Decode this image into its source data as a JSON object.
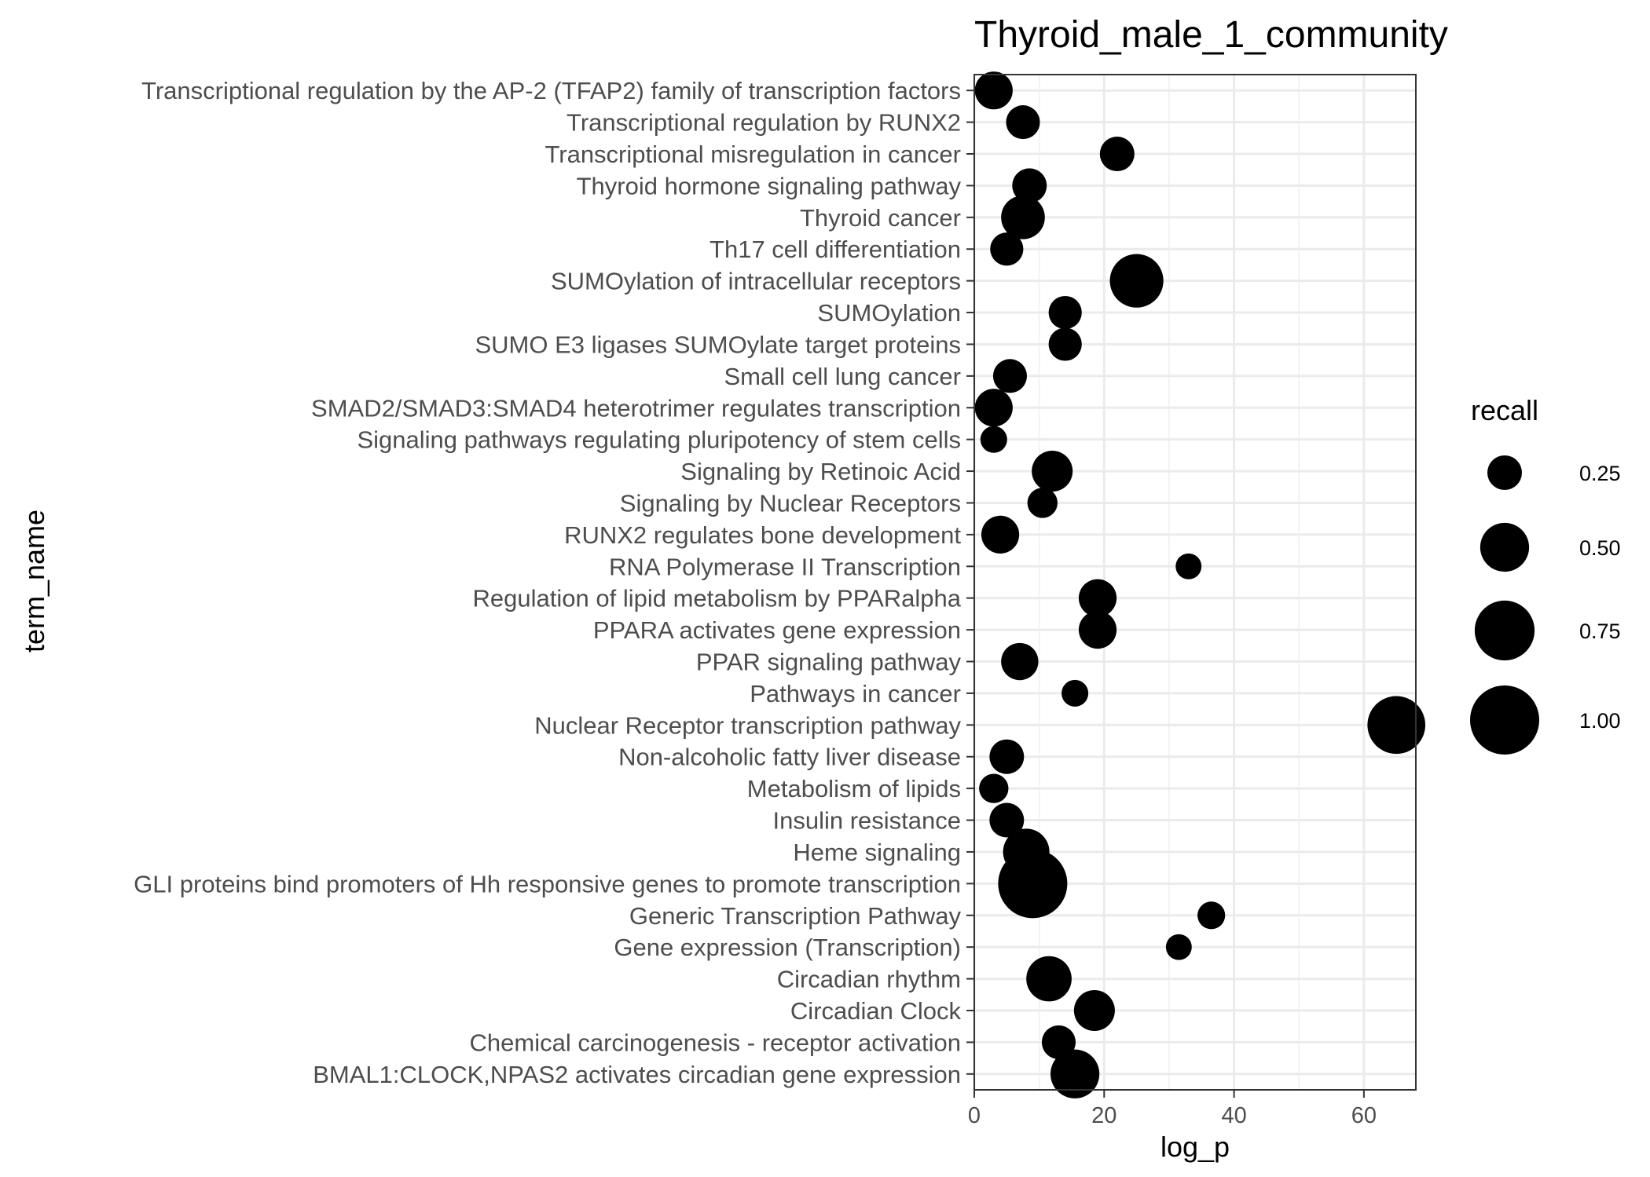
{
  "chart_data": {
    "type": "scatter",
    "title": "Thyroid_male_1_community",
    "xlabel": "log_p",
    "ylabel": "term_name",
    "xlim": [
      0,
      68
    ],
    "x_ticks": [
      0,
      20,
      40,
      60
    ],
    "x_tick_labels": [
      "0",
      "20",
      "40",
      "60"
    ],
    "grid": true,
    "size_variable": "recall",
    "legend": {
      "title": "recall",
      "placement": "right",
      "entries": [
        {
          "label": "0.25",
          "value": 0.25
        },
        {
          "label": "0.50",
          "value": 0.5
        },
        {
          "label": "0.75",
          "value": 0.75
        },
        {
          "label": "1.00",
          "value": 1.0
        }
      ]
    },
    "mark_color": "#000000",
    "categories": [
      "BMAL1:CLOCK,NPAS2 activates circadian gene expression",
      "Chemical carcinogenesis - receptor activation",
      "Circadian Clock",
      "Circadian rhythm",
      "Gene expression (Transcription)",
      "Generic Transcription Pathway",
      "GLI proteins bind promoters of Hh responsive genes to promote transcription",
      "Heme signaling",
      "Insulin resistance",
      "Metabolism of lipids",
      "Non-alcoholic fatty liver disease",
      "Nuclear Receptor transcription pathway",
      "Pathways in cancer",
      "PPAR signaling pathway",
      "PPARA activates gene expression",
      "Regulation of lipid metabolism by PPARalpha",
      "RNA Polymerase II Transcription",
      "RUNX2 regulates bone development",
      "Signaling by Nuclear Receptors",
      "Signaling by Retinoic Acid",
      "Signaling pathways regulating pluripotency of stem cells",
      "SMAD2/SMAD3:SMAD4 heterotrimer regulates transcription",
      "Small cell lung cancer",
      "SUMO E3 ligases SUMOylate target proteins",
      "SUMOylation",
      "SUMOylation of intracellular receptors",
      "Th17 cell differentiation",
      "Thyroid cancer",
      "Thyroid hormone signaling pathway",
      "Transcriptional misregulation in cancer",
      "Transcriptional regulation by RUNX2",
      "Transcriptional regulation by the AP-2 (TFAP2) family of transcription factors"
    ],
    "points": [
      {
        "term": "BMAL1:CLOCK,NPAS2 activates circadian gene expression",
        "log_p": 15.5,
        "recall": 0.5
      },
      {
        "term": "Chemical carcinogenesis - receptor activation",
        "log_p": 13.0,
        "recall": 0.24
      },
      {
        "term": "Circadian Clock",
        "log_p": 18.5,
        "recall": 0.35
      },
      {
        "term": "Circadian rhythm",
        "log_p": 11.5,
        "recall": 0.43
      },
      {
        "term": "Gene expression (Transcription)",
        "log_p": 31.5,
        "recall": 0.14
      },
      {
        "term": "Generic Transcription Pathway",
        "log_p": 36.5,
        "recall": 0.16
      },
      {
        "term": "GLI proteins bind promoters of Hh responsive genes to promote transcription",
        "log_p": 9.0,
        "recall": 1.0
      },
      {
        "term": "Heme signaling",
        "log_p": 8.0,
        "recall": 0.45
      },
      {
        "term": "Insulin resistance",
        "log_p": 5.0,
        "recall": 0.25
      },
      {
        "term": "Metabolism of lipids",
        "log_p": 3.0,
        "recall": 0.18
      },
      {
        "term": "Non-alcoholic fatty liver disease",
        "log_p": 5.0,
        "recall": 0.25
      },
      {
        "term": "Nuclear Receptor transcription pathway",
        "log_p": 65.0,
        "recall": 0.7
      },
      {
        "term": "Pathways in cancer",
        "log_p": 15.5,
        "recall": 0.15
      },
      {
        "term": "PPAR signaling pathway",
        "log_p": 7.0,
        "recall": 0.29
      },
      {
        "term": "PPARA activates gene expression",
        "log_p": 19.0,
        "recall": 0.3
      },
      {
        "term": "Regulation of lipid metabolism by PPARalpha",
        "log_p": 19.0,
        "recall": 0.3
      },
      {
        "term": "RNA Polymerase II Transcription",
        "log_p": 33.0,
        "recall": 0.14
      },
      {
        "term": "RUNX2 regulates bone development",
        "log_p": 4.0,
        "recall": 0.3
      },
      {
        "term": "Signaling by Nuclear Receptors",
        "log_p": 10.5,
        "recall": 0.19
      },
      {
        "term": "Signaling by Retinoic Acid",
        "log_p": 12.0,
        "recall": 0.35
      },
      {
        "term": "Signaling pathways regulating pluripotency of stem cells",
        "log_p": 3.0,
        "recall": 0.15
      },
      {
        "term": "SMAD2/SMAD3:SMAD4 heterotrimer regulates transcription",
        "log_p": 3.0,
        "recall": 0.3
      },
      {
        "term": "Small cell lung cancer",
        "log_p": 5.5,
        "recall": 0.24
      },
      {
        "term": "SUMO E3 ligases SUMOylate target proteins",
        "log_p": 14.0,
        "recall": 0.23
      },
      {
        "term": "SUMOylation",
        "log_p": 14.0,
        "recall": 0.23
      },
      {
        "term": "SUMOylation of intracellular receptors",
        "log_p": 25.0,
        "recall": 0.6
      },
      {
        "term": "Th17 cell differentiation",
        "log_p": 5.0,
        "recall": 0.23
      },
      {
        "term": "Thyroid cancer",
        "log_p": 7.5,
        "recall": 0.4
      },
      {
        "term": "Thyroid hormone signaling pathway",
        "log_p": 8.5,
        "recall": 0.25
      },
      {
        "term": "Transcriptional misregulation in cancer",
        "log_p": 22.0,
        "recall": 0.25
      },
      {
        "term": "Transcriptional regulation by RUNX2",
        "log_p": 7.5,
        "recall": 0.24
      },
      {
        "term": "Transcriptional regulation by the AP-2 (TFAP2) family of transcription factors",
        "log_p": 3.0,
        "recall": 0.3
      }
    ]
  }
}
